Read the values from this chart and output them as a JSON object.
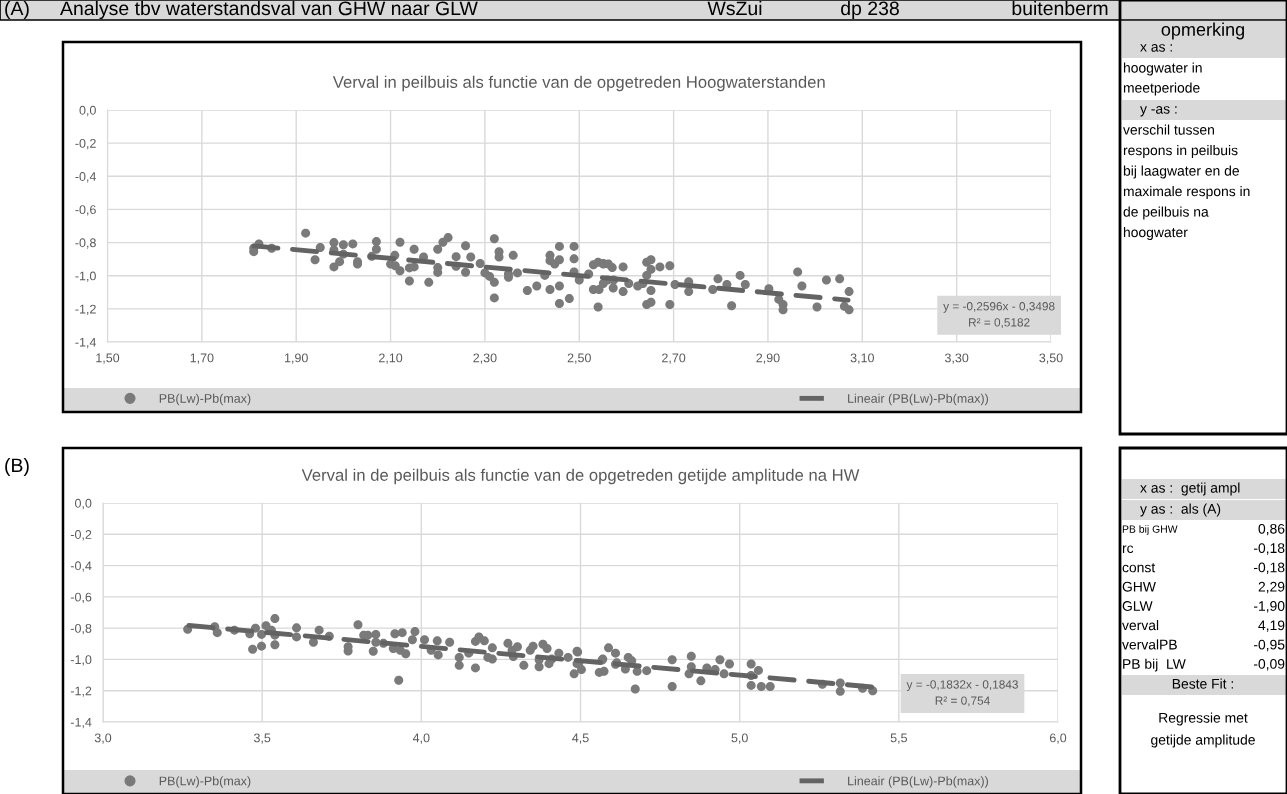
{
  "chart_data": [
    {
      "type": "scatter",
      "title": "Verval in peilbuis als functie van de opgetreden Hoogwaterstanden",
      "annotations": [
        "(A)",
        "Analyse tbv waterstandsval van GHW naar GLW",
        "WsZui",
        "dp 238",
        "buitenberm",
        "y = -0,2596x - 0,3498\nR² = 0,5182"
      ],
      "series": [
        {
          "name": "PB(Lw)-Pb(max)",
          "color": "#7a7a7a",
          "type": "scatter",
          "marker": "circle",
          "x": [
            1.81,
            1.81,
            1.821,
            1.848,
            1.92,
            1.94,
            1.951,
            1.98,
            1.98,
            1.98,
            1.992,
            2.0,
            2.0,
            2.02,
            2.03,
            2.03,
            2.06,
            2.07,
            2.07,
            2.109,
            2.1,
            2.11,
            2.12,
            2.12,
            2.14,
            2.14,
            2.15,
            2.15,
            2.17,
            2.181,
            2.2,
            2.2,
            2.2,
            2.211,
            2.222,
            2.239,
            2.239,
            2.259,
            2.259,
            2.27,
            2.29,
            2.3,
            2.31,
            2.32,
            2.32,
            2.32,
            2.33,
            2.33,
            2.35,
            2.35,
            2.36,
            2.369,
            2.39,
            2.41,
            2.427,
            2.438,
            2.438,
            2.438,
            2.448,
            2.458,
            2.458,
            2.458,
            2.458,
            2.479,
            2.489,
            2.489,
            2.489,
            2.5,
            2.52,
            2.53,
            2.53,
            2.54,
            2.54,
            2.551,
            2.56,
            2.57,
            2.572,
            2.551,
            2.562,
            2.551,
            2.542,
            2.573,
            2.593,
            2.593,
            2.605,
            2.624,
            2.635,
            2.643,
            2.643,
            2.652,
            2.652,
            2.652,
            2.643,
            2.652,
            2.671,
            2.692,
            2.692,
            2.703,
            2.732,
            2.732,
            2.783,
            2.794,
            2.813,
            2.823,
            2.841,
            2.852,
            2.902,
            2.923,
            2.932,
            2.932,
            2.963,
            2.972,
            3.004,
            3.024,
            3.052,
            3.062,
            3.072,
            3.072
          ],
          "values": [
            -0.855,
            -0.834,
            -0.808,
            -0.834,
            -0.743,
            -0.904,
            -0.83,
            -0.8,
            -0.845,
            -0.947,
            -0.915,
            -0.87,
            -0.813,
            -0.808,
            -0.915,
            -0.93,
            -0.883,
            -0.794,
            -0.84,
            -0.877,
            -0.93,
            -0.94,
            -0.798,
            -0.97,
            -1.032,
            -0.953,
            -0.84,
            -0.947,
            -0.887,
            -1.04,
            -0.84,
            -0.951,
            -0.98,
            -0.798,
            -0.77,
            -0.885,
            -0.943,
            -0.819,
            -0.979,
            -0.887,
            -0.926,
            -0.983,
            -1.004,
            -0.777,
            -1.04,
            -1.134,
            -0.855,
            -0.887,
            -0.99,
            -1.01,
            -0.877,
            -0.983,
            -1.089,
            -1.062,
            -0.998,
            -0.877,
            -0.909,
            -1.083,
            -0.93,
            -0.823,
            -0.904,
            -1.062,
            -1.168,
            -1.138,
            -0.823,
            -0.898,
            -0.977,
            -1.026,
            -0.99,
            -0.934,
            -1.083,
            -0.919,
            -1.189,
            -0.93,
            -1.026,
            -0.951,
            -1.074,
            -0.926,
            -0.93,
            -1.047,
            -1.083,
            -1.026,
            -0.947,
            -1.096,
            -1.047,
            -1.062,
            -1.047,
            -0.998,
            -0.919,
            -0.904,
            -0.962,
            -1.089,
            -1.174,
            -1.16,
            -0.947,
            -0.94,
            -1.174,
            -1.053,
            -1.036,
            -1.096,
            -1.083,
            -1.019,
            -1.053,
            -1.181,
            -0.998,
            -1.053,
            -1.079,
            -1.143,
            -1.174,
            -1.206,
            -0.977,
            -1.062,
            -1.189,
            -1.026,
            -1.019,
            -1.185,
            -1.206,
            -1.096
          ]
        },
        {
          "name": "Lineair (PB(Lw)-Pb(max))",
          "color": "#636363",
          "type": "line",
          "line_style": "dashed",
          "x": [
            1.81,
            3.07
          ],
          "values": [
            -0.82,
            -1.147
          ]
        }
      ],
      "xlim": [
        1.5,
        3.5
      ],
      "xticks": [
        {
          "value": 1.5,
          "label": "1,50"
        },
        {
          "value": 1.7,
          "label": "1,70"
        },
        {
          "value": 1.9,
          "label": "1,90"
        },
        {
          "value": 2.1,
          "label": "2,10"
        },
        {
          "value": 2.3,
          "label": "2,30"
        },
        {
          "value": 2.5,
          "label": "2,50"
        },
        {
          "value": 2.7,
          "label": "2,70"
        },
        {
          "value": 2.9,
          "label": "2,90"
        },
        {
          "value": 3.1,
          "label": "3,10"
        },
        {
          "value": 3.3,
          "label": "3,30"
        },
        {
          "value": 3.5,
          "label": "3,50"
        }
      ],
      "ylim": [
        -1.4,
        0.0
      ],
      "yticks": [
        {
          "value": -1.4,
          "label": "-1,4"
        },
        {
          "value": -1.2,
          "label": "-1,2"
        },
        {
          "value": -1.0,
          "label": "-1,0"
        },
        {
          "value": -0.8,
          "label": "-0,8"
        },
        {
          "value": -0.6,
          "label": "-0,6"
        },
        {
          "value": -0.4,
          "label": "-0,4"
        },
        {
          "value": -0.2,
          "label": "-0,2"
        },
        {
          "value": 0.0,
          "label": "0,0"
        }
      ],
      "grid": true,
      "legend": "bottom"
    },
    {
      "type": "scatter",
      "title": "Verval in de peilbuis als functie van de opgetreden getijde amplitude na HW",
      "annotations": [
        "(B)",
        "y = -0,1832x - 0,1843\nR² = 0,754"
      ],
      "series": [
        {
          "name": "PB(Lw)-Pb(max)",
          "color": "#7a7a7a",
          "type": "scatter",
          "marker": "circle",
          "x": [
            3.266,
            3.351,
            3.359,
            3.413,
            3.461,
            3.47,
            3.479,
            3.498,
            3.498,
            3.512,
            3.529,
            3.54,
            3.54,
            3.54,
            3.608,
            3.608,
            3.661,
            3.679,
            3.711,
            3.77,
            3.77,
            3.801,
            3.819,
            3.832,
            3.849,
            3.857,
            3.857,
            3.881,
            3.912,
            3.917,
            3.929,
            3.94,
            3.934,
            3.951,
            3.972,
            3.98,
            4.01,
            4.031,
            4.05,
            4.053,
            4.089,
            4.119,
            4.119,
            4.149,
            4.17,
            4.17,
            4.181,
            4.198,
            4.209,
            4.223,
            4.223,
            4.272,
            4.285,
            4.289,
            4.302,
            4.322,
            4.342,
            4.351,
            4.37,
            4.37,
            4.382,
            4.395,
            4.401,
            4.41,
            4.432,
            4.461,
            4.48,
            4.491,
            4.495,
            4.503,
            4.559,
            4.568,
            4.574,
            4.614,
            4.489,
            4.489,
            4.57,
            4.588,
            4.61,
            4.61,
            4.641,
            4.65,
            4.661,
            4.672,
            4.678,
            4.708,
            4.788,
            4.788,
            4.841,
            4.848,
            4.848,
            4.878,
            4.897,
            4.923,
            4.938,
            4.951,
            4.968,
            5.036,
            5.036,
            5.036,
            5.059,
            5.068,
            5.096,
            5.26,
            5.316,
            5.316,
            5.386,
            5.418
          ],
          "values": [
            -0.807,
            -0.791,
            -0.829,
            -0.813,
            -0.836,
            -0.935,
            -0.8,
            -0.915,
            -0.84,
            -0.784,
            -0.813,
            -0.739,
            -0.845,
            -0.906,
            -0.798,
            -0.856,
            -0.89,
            -0.813,
            -0.852,
            -0.919,
            -0.946,
            -0.778,
            -0.845,
            -0.845,
            -0.948,
            -0.84,
            -0.89,
            -0.897,
            -0.93,
            -0.836,
            -1.133,
            -0.829,
            -0.942,
            -0.964,
            -0.874,
            -0.822,
            -0.874,
            -0.942,
            -0.881,
            -0.971,
            -0.89,
            -0.987,
            -1.038,
            -0.96,
            -1.054,
            -0.885,
            -0.856,
            -0.881,
            -0.987,
            -0.926,
            -0.998,
            -0.897,
            -0.942,
            -0.982,
            -0.919,
            -1.038,
            -0.942,
            -0.915,
            -1.002,
            -1.047,
            -0.903,
            -0.93,
            -1.027,
            -0.998,
            -0.96,
            -0.987,
            -1.092,
            -0.953,
            -1.02,
            -1.065,
            -1.083,
            -1.004,
            -1.076,
            -1.022,
            -0.948,
            -1.027,
            -0.998,
            -0.926,
            -0.96,
            -1.031,
            -1.061,
            -0.987,
            -1.009,
            -1.189,
            -1.076,
            -1.072,
            -1.002,
            -1.173,
            -1.092,
            -0.98,
            -1.047,
            -1.137,
            -1.054,
            -1.065,
            -1.002,
            -1.092,
            -1.029,
            -1.029,
            -1.103,
            -1.166,
            -1.07,
            -1.173,
            -1.173,
            -1.159,
            -1.151,
            -1.204,
            -1.184,
            -1.2
          ]
        },
        {
          "name": "Lineair (PB(Lw)-Pb(max))",
          "color": "#636363",
          "type": "line",
          "line_style": "dashed",
          "x": [
            3.27,
            5.42
          ],
          "values": [
            -0.783,
            -1.177
          ]
        }
      ],
      "xlim": [
        3.0,
        6.0
      ],
      "xticks": [
        {
          "value": 3.0,
          "label": "3,0"
        },
        {
          "value": 3.5,
          "label": "3,5"
        },
        {
          "value": 4.0,
          "label": "4,0"
        },
        {
          "value": 4.5,
          "label": "4,5"
        },
        {
          "value": 5.0,
          "label": "5,0"
        },
        {
          "value": 5.5,
          "label": "5,5"
        },
        {
          "value": 6.0,
          "label": "6,0"
        }
      ],
      "ylim": [
        -1.4,
        0.0
      ],
      "yticks": [
        {
          "value": -1.4,
          "label": "-1,4"
        },
        {
          "value": -1.2,
          "label": "-1,2"
        },
        {
          "value": -1.0,
          "label": "-1,0"
        },
        {
          "value": -0.8,
          "label": "-0,8"
        },
        {
          "value": -0.6,
          "label": "-0,6"
        },
        {
          "value": -0.4,
          "label": "-0,4"
        },
        {
          "value": -0.2,
          "label": "-0,2"
        },
        {
          "value": 0.0,
          "label": "0,0"
        }
      ],
      "grid": true,
      "legend": "bottom"
    },
    {
      "type": "other",
      "annotations": [
        "opmerking",
        "x as :",
        "hoogwater in",
        "meetperiode",
        "y -as :",
        "verschil tussen",
        "respons in peilbuis",
        "bij laagwater en de",
        "maximale respons in",
        "de peilbuis na",
        "hoogwater",
        "x as :  getij ampl",
        "y as :  als (A)",
        "PB bij GHW",
        "0,86",
        "rc",
        "-0,18",
        "const",
        "-0,18",
        "GHW",
        "2,29",
        "GLW",
        "-1,90",
        "verval",
        "4,19",
        "vervalPB",
        "-0,95",
        "PB bij  LW",
        "-0,09",
        "Beste Fit :",
        "Regressie met",
        "getijde amplitude"
      ]
    }
  ]
}
